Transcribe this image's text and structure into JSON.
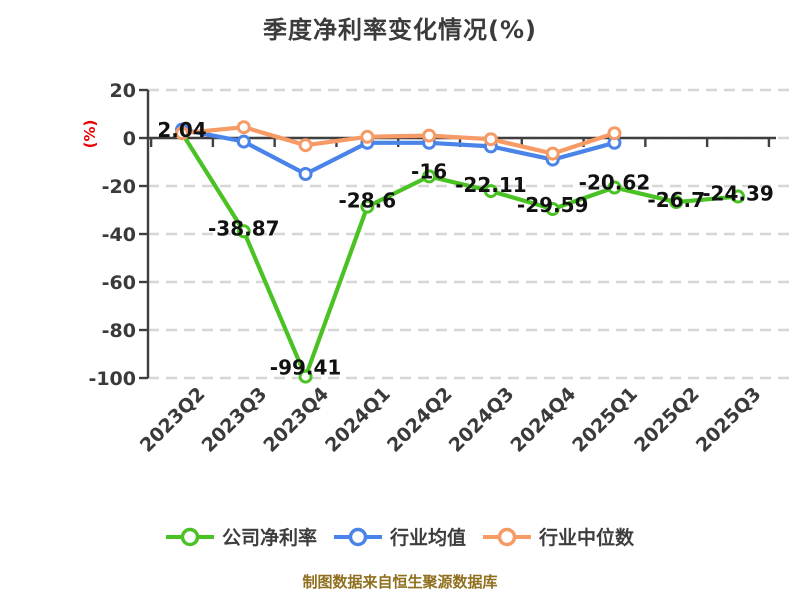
{
  "chart_data": {
    "type": "line",
    "title": "季度净利率变化情况(%)",
    "ylabel": "(%)",
    "ylabel_color": "#e60000",
    "categories": [
      "2023Q2",
      "2023Q3",
      "2023Q4",
      "2024Q1",
      "2024Q2",
      "2024Q3",
      "2024Q4",
      "2025Q1",
      "2025Q2",
      "2025Q3"
    ],
    "yticks": [
      20,
      0,
      -20,
      -40,
      -60,
      -80,
      -100
    ],
    "ylim": [
      -100,
      20
    ],
    "grid": "horizontal-dashed",
    "legend_position": "bottom",
    "series": [
      {
        "name": "公司净利率",
        "color": "#4bc224",
        "values": [
          2.04,
          -38.87,
          -99.41,
          -28.6,
          -16,
          -22.11,
          -29.59,
          -20.62,
          -26.7,
          -24.39
        ],
        "point_labels": [
          "2.04",
          "-38.87",
          "-99.41",
          "-28.6",
          "-16",
          "-22.11",
          "-29.59",
          "-20.62",
          "-26.7",
          "-24.39"
        ]
      },
      {
        "name": "行业均值",
        "color": "#4a84e8",
        "values": [
          3.5,
          -1.5,
          -15,
          -2,
          -2,
          -3.5,
          -9,
          -2
        ],
        "point_labels": []
      },
      {
        "name": "行业中位数",
        "color": "#f69a66",
        "values": [
          2,
          4.5,
          -3,
          0.5,
          1,
          -0.5,
          -6.5,
          2
        ],
        "point_labels": []
      }
    ],
    "footer": "制图数据来自恒生聚源数据库",
    "footer_color": "#8f701e"
  }
}
